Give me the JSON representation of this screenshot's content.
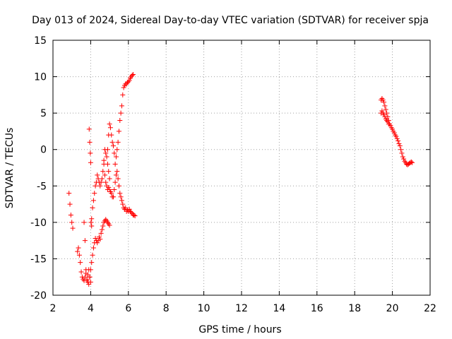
{
  "chart_data": {
    "type": "scatter",
    "title": "Day 013 of 2024, Sidereal Day-to-day VTEC variation (SDTVAR) for receiver spja",
    "xlabel": "GPS time / hours",
    "ylabel": "SDTVAR / TECUs",
    "xlim": [
      2,
      22
    ],
    "ylim": [
      -20,
      15
    ],
    "xticks": [
      2,
      4,
      6,
      8,
      10,
      12,
      14,
      16,
      18,
      20,
      22
    ],
    "yticks": [
      -20,
      -15,
      -10,
      -5,
      0,
      5,
      10,
      15
    ],
    "grid": true,
    "marker": "+",
    "series": [
      {
        "name": "segment-1",
        "color": "#ff0000",
        "x": [
          2.85,
          2.9,
          2.95,
          3.0,
          3.05
        ],
        "y": [
          -6.0,
          -7.5,
          -9.0,
          -10.0,
          -10.8
        ]
      },
      {
        "name": "segment-2",
        "color": "#ff0000",
        "x": [
          3.3,
          3.35,
          3.4,
          3.45,
          3.5,
          3.55,
          3.6,
          3.65,
          3.7,
          3.75,
          3.8,
          3.85,
          3.9,
          3.95,
          4.0,
          4.05,
          4.1,
          4.15,
          4.2,
          4.25,
          4.3,
          4.35,
          4.4,
          4.45,
          4.5,
          4.55,
          4.6,
          4.65,
          4.7,
          4.75,
          4.8,
          4.85,
          4.9,
          4.95,
          5.0
        ],
        "y": [
          -14.0,
          -13.5,
          -14.5,
          -15.5,
          -16.8,
          -17.5,
          -17.8,
          -18.0,
          -17.5,
          -17.0,
          -18.0,
          -18.2,
          -18.5,
          -17.5,
          -16.5,
          -15.5,
          -14.5,
          -13.5,
          -12.8,
          -12.2,
          -12.5,
          -12.8,
          -12.5,
          -12.0,
          -12.3,
          -11.5,
          -11.0,
          -10.5,
          -10.0,
          -9.8,
          -9.6,
          -9.8,
          -10.0,
          -10.2,
          -10.4
        ]
      },
      {
        "name": "segment-3",
        "color": "#ff0000",
        "x": [
          3.65,
          3.7,
          3.75,
          3.8,
          3.85,
          3.9,
          3.95,
          4.0
        ],
        "y": [
          -10.0,
          -12.5,
          -16.5,
          -17.8,
          -17.2,
          -16.5,
          -17.5,
          -18.2
        ]
      },
      {
        "name": "segment-4",
        "color": "#ff0000",
        "x": [
          3.92,
          3.95,
          3.98,
          4.0,
          4.02,
          4.05
        ],
        "y": [
          2.8,
          1.0,
          -0.5,
          -1.8,
          -10.0,
          -10.5
        ]
      },
      {
        "name": "segment-5",
        "color": "#ff0000",
        "x": [
          4.05,
          4.1,
          4.15,
          4.2,
          4.25,
          4.3,
          4.35,
          4.4,
          4.45,
          4.5,
          4.55,
          4.6,
          4.65,
          4.7,
          4.75,
          4.8,
          4.85,
          4.9,
          4.95,
          5.0
        ],
        "y": [
          -9.5,
          -8.0,
          -7.0,
          -6.0,
          -5.0,
          -4.5,
          -3.5,
          -4.0,
          -4.5,
          -5.0,
          -4.5,
          -4.0,
          -3.0,
          -1.5,
          0.0,
          -0.5,
          -1.0,
          -2.0,
          -3.0,
          -4.0
        ]
      },
      {
        "name": "segment-6",
        "color": "#ff0000",
        "x": [
          4.7,
          4.75,
          4.8,
          4.85,
          4.9,
          4.95,
          5.0,
          5.05,
          5.1,
          5.15,
          5.2,
          5.25,
          5.3,
          5.35,
          5.4,
          5.45,
          5.5,
          5.55,
          5.6,
          5.65,
          5.7,
          5.75,
          5.8,
          5.85,
          5.9,
          5.95,
          6.0,
          6.05,
          6.1,
          6.15,
          6.2,
          6.25,
          6.3,
          6.35
        ],
        "y": [
          -2.0,
          -3.5,
          -4.5,
          -5.0,
          -5.5,
          -5.2,
          -5.5,
          -5.8,
          -6.0,
          -6.5,
          -6.5,
          -5.5,
          -4.5,
          -3.5,
          -3.0,
          -4.0,
          -5.0,
          -6.0,
          -6.5,
          -7.0,
          -7.5,
          -8.0,
          -8.2,
          -8.0,
          -8.5,
          -8.3,
          -8.5,
          -8.2,
          -8.5,
          -8.6,
          -8.8,
          -9.0,
          -9.0,
          -9.1
        ]
      },
      {
        "name": "segment-7",
        "color": "#ff0000",
        "x": [
          4.9,
          4.95,
          5.0,
          5.05,
          5.1,
          5.15,
          5.2,
          5.25,
          5.3,
          5.35,
          5.4,
          5.45,
          5.5,
          5.55,
          5.6,
          5.65,
          5.7,
          5.75,
          5.8,
          5.85,
          5.9,
          5.95,
          6.0,
          6.05,
          6.1,
          6.15,
          6.2,
          6.25
        ],
        "y": [
          0.0,
          2.0,
          3.5,
          3.0,
          2.0,
          1.0,
          0.5,
          -0.5,
          -2.0,
          -1.0,
          0.0,
          1.0,
          2.5,
          4.0,
          5.0,
          6.0,
          7.5,
          8.5,
          8.8,
          9.0,
          9.0,
          9.2,
          9.3,
          9.5,
          9.8,
          10.0,
          10.2,
          10.3
        ]
      },
      {
        "name": "segment-8",
        "color": "#ff0000",
        "x": [
          19.4,
          19.45,
          19.5,
          19.55,
          19.6,
          19.65,
          19.7,
          19.75,
          19.8,
          19.85,
          19.9,
          19.95,
          20.0,
          20.05,
          20.1,
          20.15,
          20.2,
          20.25,
          20.3,
          20.35,
          20.4,
          20.45,
          20.5,
          20.55,
          20.6,
          20.65,
          20.7,
          20.75,
          20.8,
          20.85,
          20.9,
          20.95,
          21.0,
          21.05
        ],
        "y": [
          6.8,
          7.0,
          6.8,
          6.5,
          6.0,
          5.5,
          5.0,
          4.5,
          4.0,
          3.5,
          3.3,
          3.0,
          2.8,
          2.5,
          2.3,
          2.0,
          1.8,
          1.5,
          1.2,
          0.8,
          0.5,
          0.0,
          -0.5,
          -1.0,
          -1.3,
          -1.6,
          -1.8,
          -2.0,
          -2.1,
          -2.0,
          -1.9,
          -1.8,
          -1.7,
          -1.8
        ]
      },
      {
        "name": "segment-9",
        "color": "#ff0000",
        "x": [
          19.4,
          19.45,
          19.5,
          19.55,
          19.6,
          19.65,
          19.7,
          19.75,
          19.8
        ],
        "y": [
          5.0,
          5.3,
          5.0,
          4.8,
          4.5,
          4.2,
          4.0,
          3.8,
          3.5
        ]
      }
    ]
  }
}
